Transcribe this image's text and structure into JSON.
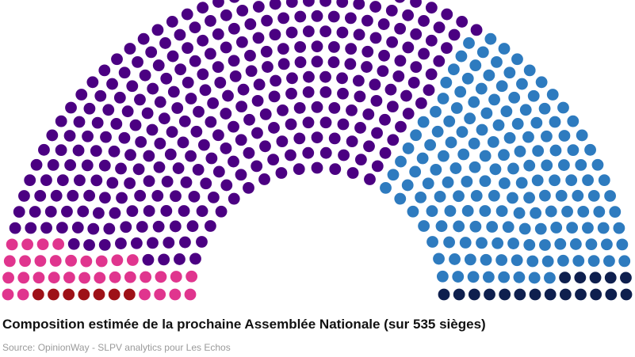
{
  "chart_data": {
    "type": "parliament",
    "title": "Composition estimée de la prochaine Assemblée Nationale (sur 535 sièges)",
    "source": "Source: OpinionWay - SLPV analytics pour Les Echos",
    "total_seats": 535,
    "series": [
      {
        "seats": 7,
        "color": "#9e1118"
      },
      {
        "seats": 32,
        "color": "#e0358e"
      },
      {
        "seats": 315,
        "color": "#4b0082"
      },
      {
        "seats": 163,
        "color": "#2e7bbf"
      },
      {
        "seats": 18,
        "color": "#0e1f4e"
      }
    ]
  }
}
